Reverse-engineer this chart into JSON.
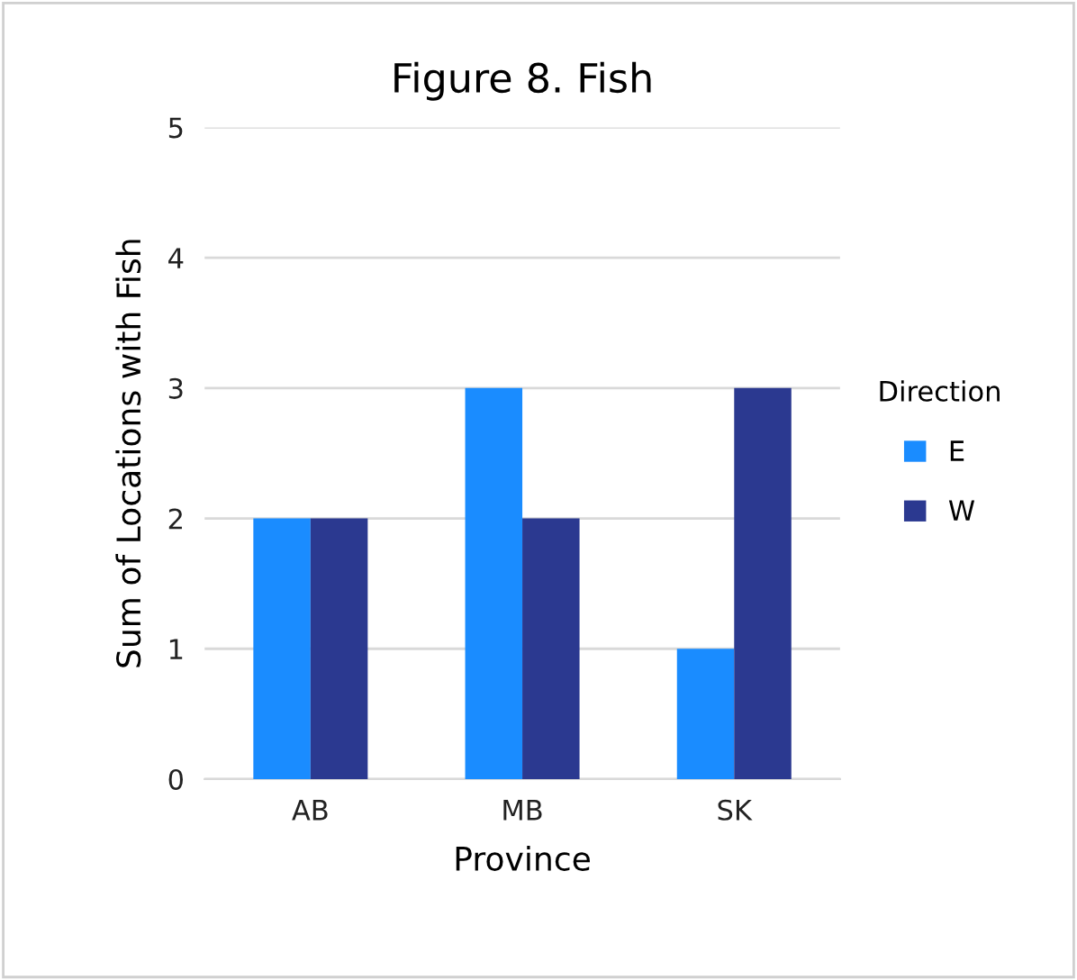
{
  "chart_data": {
    "type": "bar",
    "title": "Figure 8. Fish",
    "xlabel": "Province",
    "ylabel": "Sum of Locations with Fish",
    "legend_title": "Direction",
    "categories": [
      "AB",
      "MB",
      "SK"
    ],
    "series": [
      {
        "name": "E",
        "color": "#1a8cff",
        "values": [
          2,
          3,
          1
        ]
      },
      {
        "name": "W",
        "color": "#2b3990",
        "values": [
          2,
          2,
          3
        ]
      }
    ],
    "ylim": [
      0,
      5
    ],
    "yticks": [
      0,
      1,
      2,
      3,
      4,
      5
    ],
    "grid": "y",
    "legend": "right"
  }
}
